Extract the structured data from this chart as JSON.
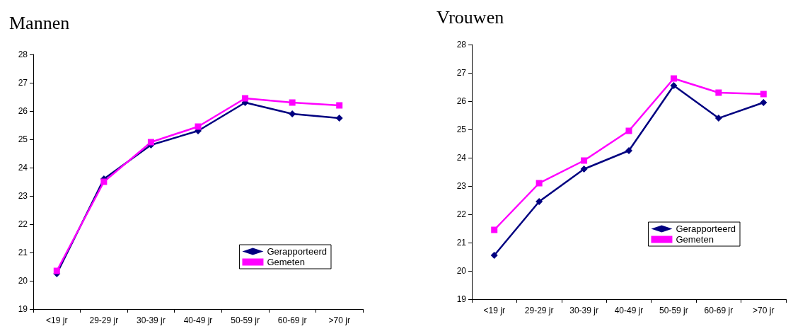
{
  "chart_data": [
    {
      "type": "line",
      "title": "Mannen",
      "categories": [
        "<19 jr",
        "29-29 jr",
        "30-39 jr",
        "40-49 jr",
        "50-59 jr",
        "60-69 jr",
        ">70 jr"
      ],
      "series": [
        {
          "name": "Gerapporteerd",
          "color": "#000080",
          "marker": "diamond",
          "values": [
            20.25,
            23.6,
            24.8,
            25.3,
            26.3,
            25.9,
            25.75
          ]
        },
        {
          "name": "Gemeten",
          "color": "#ff00ff",
          "marker": "square",
          "values": [
            20.35,
            23.5,
            24.9,
            25.45,
            26.45,
            26.3,
            26.2
          ]
        }
      ],
      "ylim": [
        19,
        28
      ],
      "yticks": [
        19,
        20,
        21,
        22,
        23,
        24,
        25,
        26,
        27,
        28
      ],
      "grid": false,
      "legend": "bottom right"
    },
    {
      "type": "line",
      "title": "Vrouwen",
      "categories": [
        "<19 jr",
        "29-29 jr",
        "30-39 jr",
        "40-49 jr",
        "50-59 jr",
        "60-69 jr",
        ">70 jr"
      ],
      "series": [
        {
          "name": "Gerapporteerd",
          "color": "#000080",
          "marker": "diamond",
          "values": [
            20.55,
            22.45,
            23.6,
            24.25,
            26.55,
            25.4,
            25.95
          ]
        },
        {
          "name": "Gemeten",
          "color": "#ff00ff",
          "marker": "square",
          "values": [
            21.45,
            23.1,
            23.9,
            24.95,
            26.8,
            26.3,
            26.25
          ]
        }
      ],
      "ylim": [
        19,
        28
      ],
      "yticks": [
        19,
        20,
        21,
        22,
        23,
        24,
        25,
        26,
        27,
        28
      ],
      "grid": false,
      "legend": "bottom right"
    }
  ]
}
